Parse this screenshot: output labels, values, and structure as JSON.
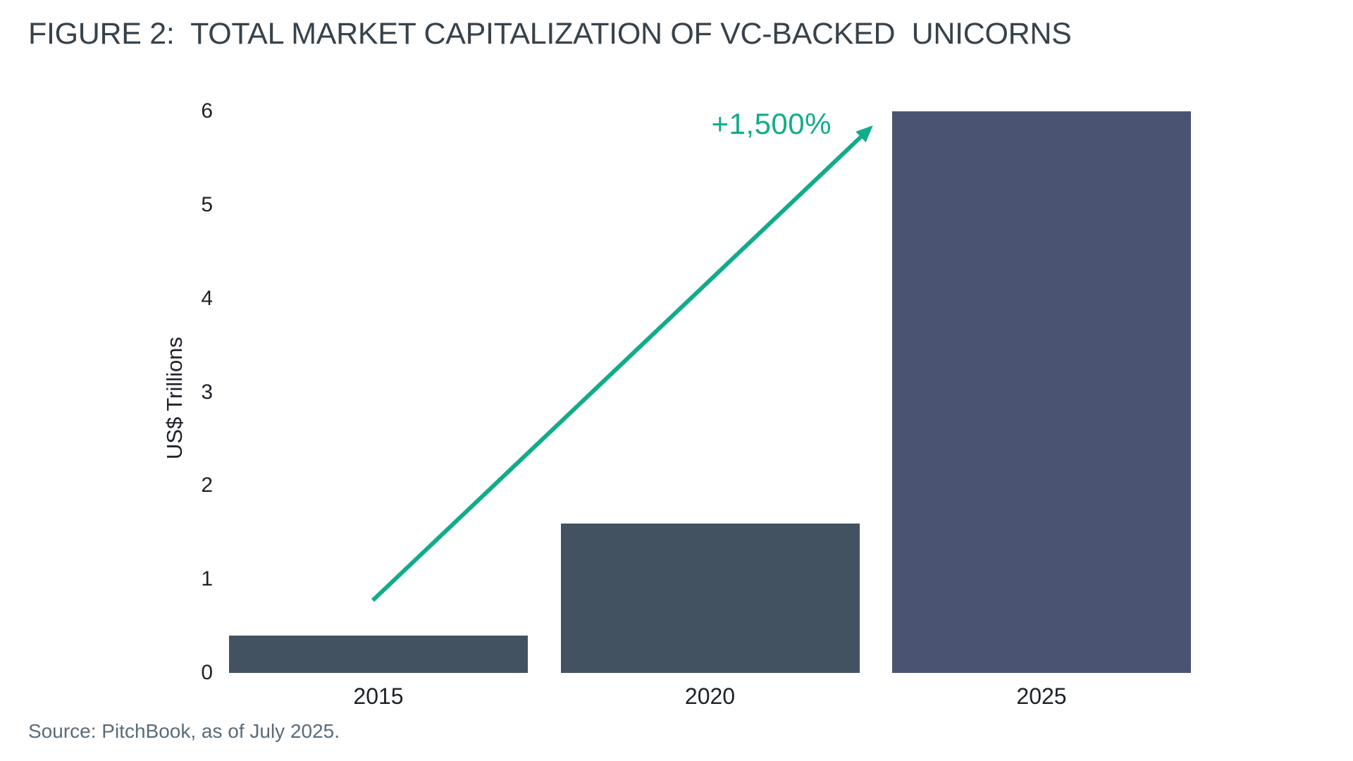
{
  "figure": {
    "title": "FIGURE 2:  TOTAL MARKET CAPITALIZATION OF VC-BACKED  UNICORNS",
    "source": "Source: PitchBook, as of July 2025."
  },
  "chart_data": {
    "type": "bar",
    "title": "FIGURE 2:  TOTAL MARKET CAPITALIZATION OF VC-BACKED  UNICORNS",
    "categories": [
      "2015",
      "2020",
      "2025"
    ],
    "values": [
      0.4,
      1.6,
      6.0
    ],
    "bar_colors": [
      "#435260",
      "#435260",
      "#4A5472"
    ],
    "xlabel": "",
    "ylabel": "US$ Trillions",
    "ylim": [
      0,
      6
    ],
    "yticks": [
      0,
      1,
      2,
      3,
      4,
      5,
      6
    ],
    "grid": false,
    "legend": "none",
    "annotation": {
      "label": "+1,500%",
      "color": "#11AC8A",
      "from_category": "2015",
      "to_category": "2025"
    },
    "source": "Source: PitchBook, as of July 2025.",
    "colors": {
      "title": "#37424B",
      "axis_text": "#1D2127",
      "source_text": "#5A6B79",
      "background": "#FFFFFF"
    }
  }
}
